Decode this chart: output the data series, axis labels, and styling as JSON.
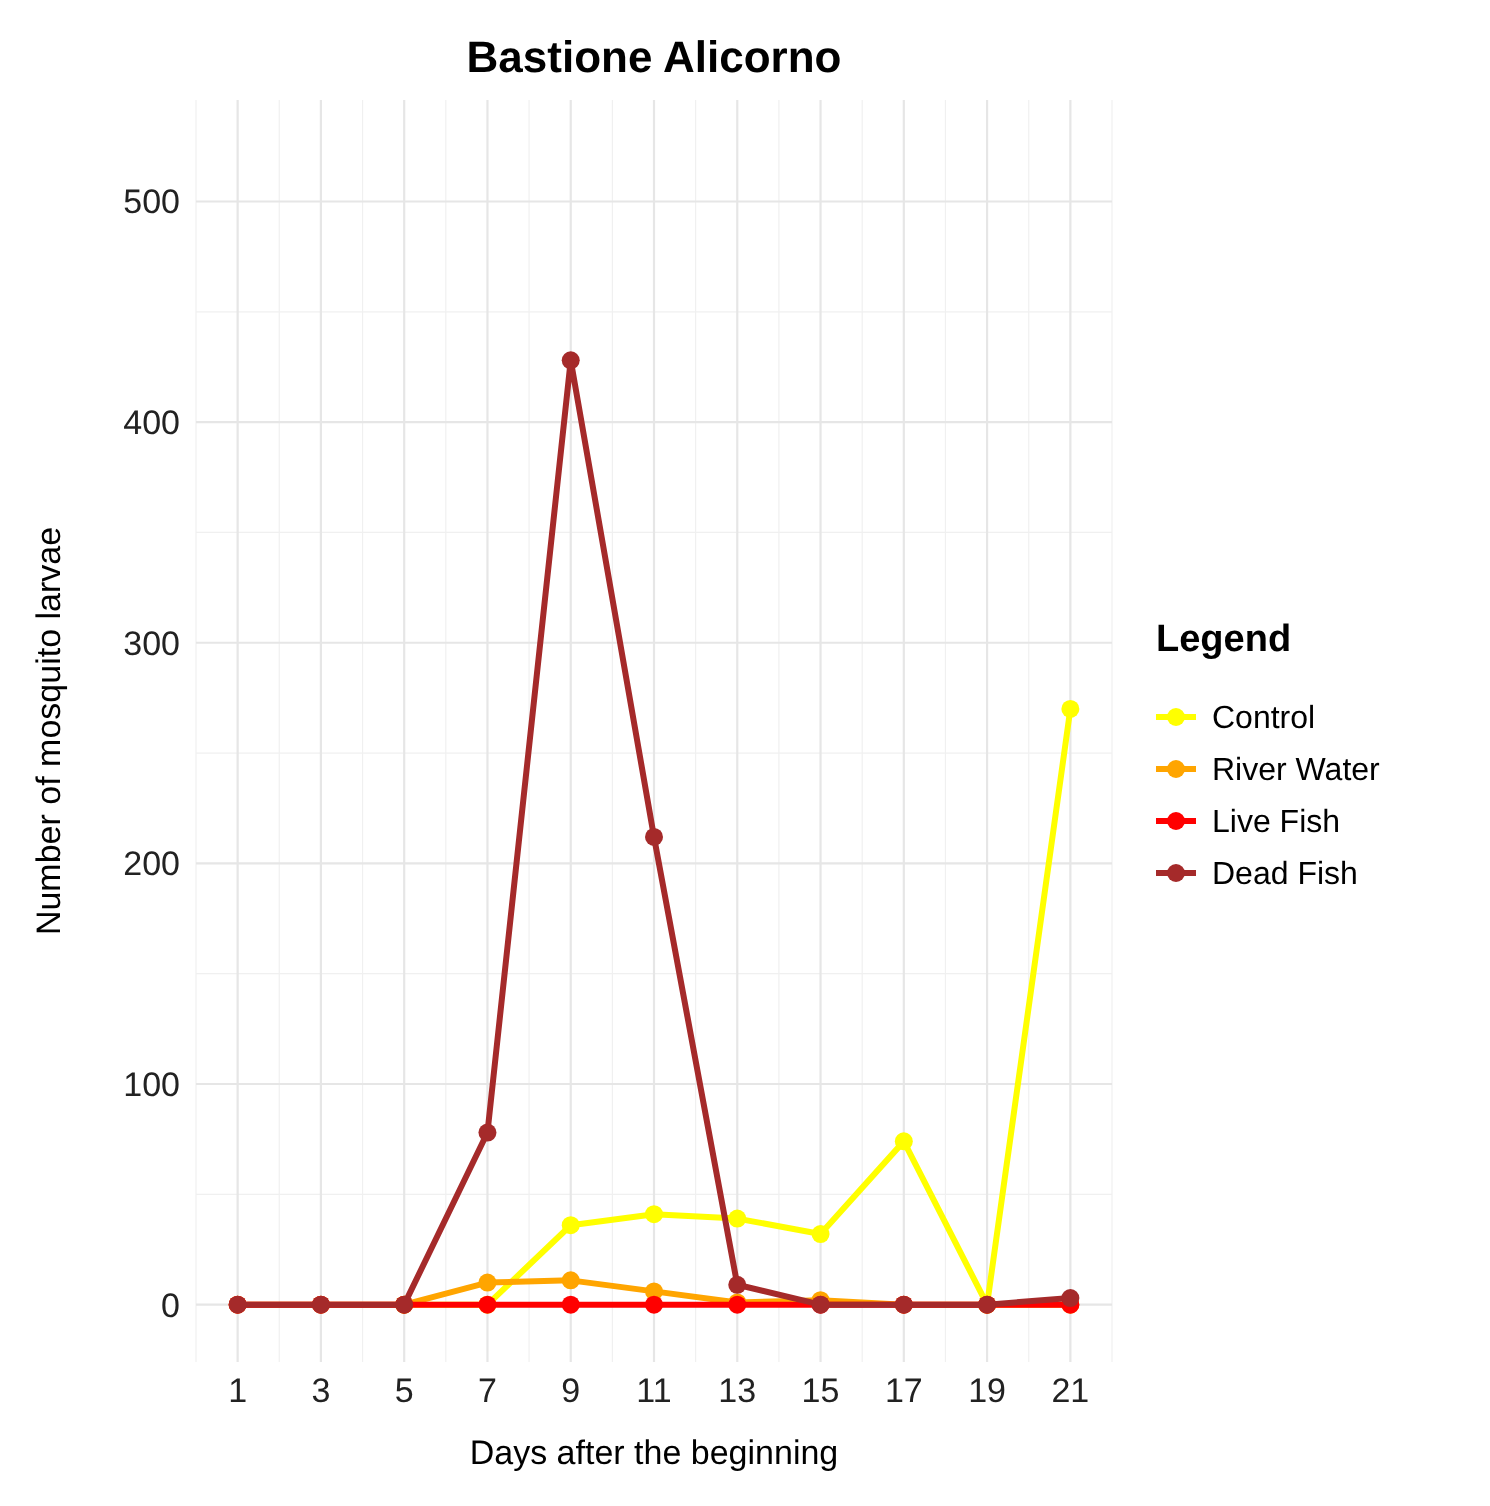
{
  "chart_data": {
    "type": "line",
    "title": "Bastione Alicorno",
    "xlabel": "Days after the beginning",
    "ylabel": "Number of mosquito larvae",
    "legend_title": "Legend",
    "x": [
      1,
      3,
      5,
      7,
      9,
      11,
      13,
      15,
      17,
      19,
      21
    ],
    "xlim": [
      0,
      22
    ],
    "xticks": [
      1,
      3,
      5,
      7,
      9,
      11,
      13,
      15,
      17,
      19,
      21
    ],
    "ylim": [
      -26,
      546
    ],
    "yticks": [
      0,
      100,
      200,
      300,
      400,
      500
    ],
    "grid": true,
    "legend": "right",
    "marker": "circle",
    "line_style": "solid",
    "series": [
      {
        "name": "Control",
        "color": "#ffff00",
        "values": [
          null,
          null,
          0,
          0,
          36,
          41,
          39,
          32,
          74,
          0,
          270
        ]
      },
      {
        "name": "River Water",
        "color": "#ffa500",
        "values": [
          0,
          0,
          0,
          10,
          11,
          6,
          1,
          2,
          0,
          0,
          0
        ]
      },
      {
        "name": "Live Fish",
        "color": "#ff0000",
        "values": [
          0,
          0,
          0,
          0,
          0,
          0,
          0,
          0,
          0,
          0,
          0
        ]
      },
      {
        "name": "Dead Fish",
        "color": "#a52a2a",
        "values": [
          0,
          0,
          0,
          78,
          428,
          212,
          9,
          0,
          0,
          0,
          3
        ]
      }
    ]
  }
}
